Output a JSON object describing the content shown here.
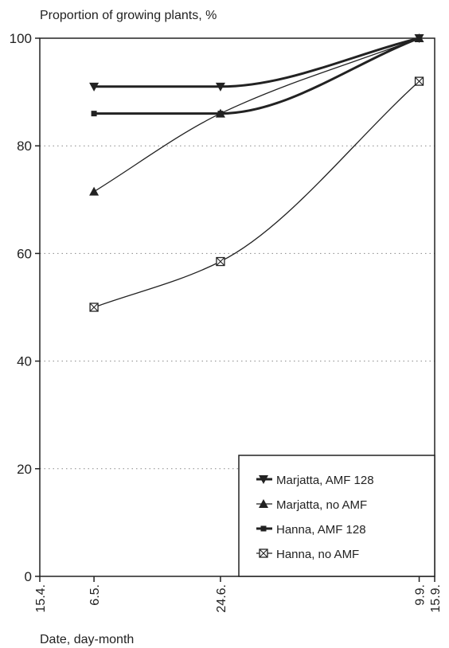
{
  "chart_data": {
    "type": "line",
    "ylabel": "Proportion of growing plants, %",
    "xlabel": "Date, day-month",
    "ylim": [
      0,
      100
    ],
    "yticks": [
      0,
      20,
      40,
      60,
      80,
      100
    ],
    "xlim": [
      "15.4.",
      "15.9."
    ],
    "xticks": [
      "15.4.",
      "6.5.",
      "24.6.",
      "9.9.",
      "15.9."
    ],
    "grid": "horizontal dotted",
    "legend_position": "bottom-right",
    "x": [
      "6.5.",
      "24.6.",
      "9.9."
    ],
    "series": [
      {
        "name": "Marjatta, AMF 128",
        "marker": "triangle-down",
        "line": "thick",
        "values": [
          91,
          91,
          100
        ]
      },
      {
        "name": "Marjatta, no AMF",
        "marker": "triangle-up",
        "line": "thin",
        "values": [
          71.5,
          86,
          100
        ]
      },
      {
        "name": "Hanna, AMF 128",
        "marker": "square",
        "line": "thick",
        "values": [
          86,
          86,
          100
        ]
      },
      {
        "name": "Hanna, no AMF",
        "marker": "crossed-square",
        "line": "thin",
        "values": [
          50,
          58.5,
          92
        ]
      }
    ]
  }
}
